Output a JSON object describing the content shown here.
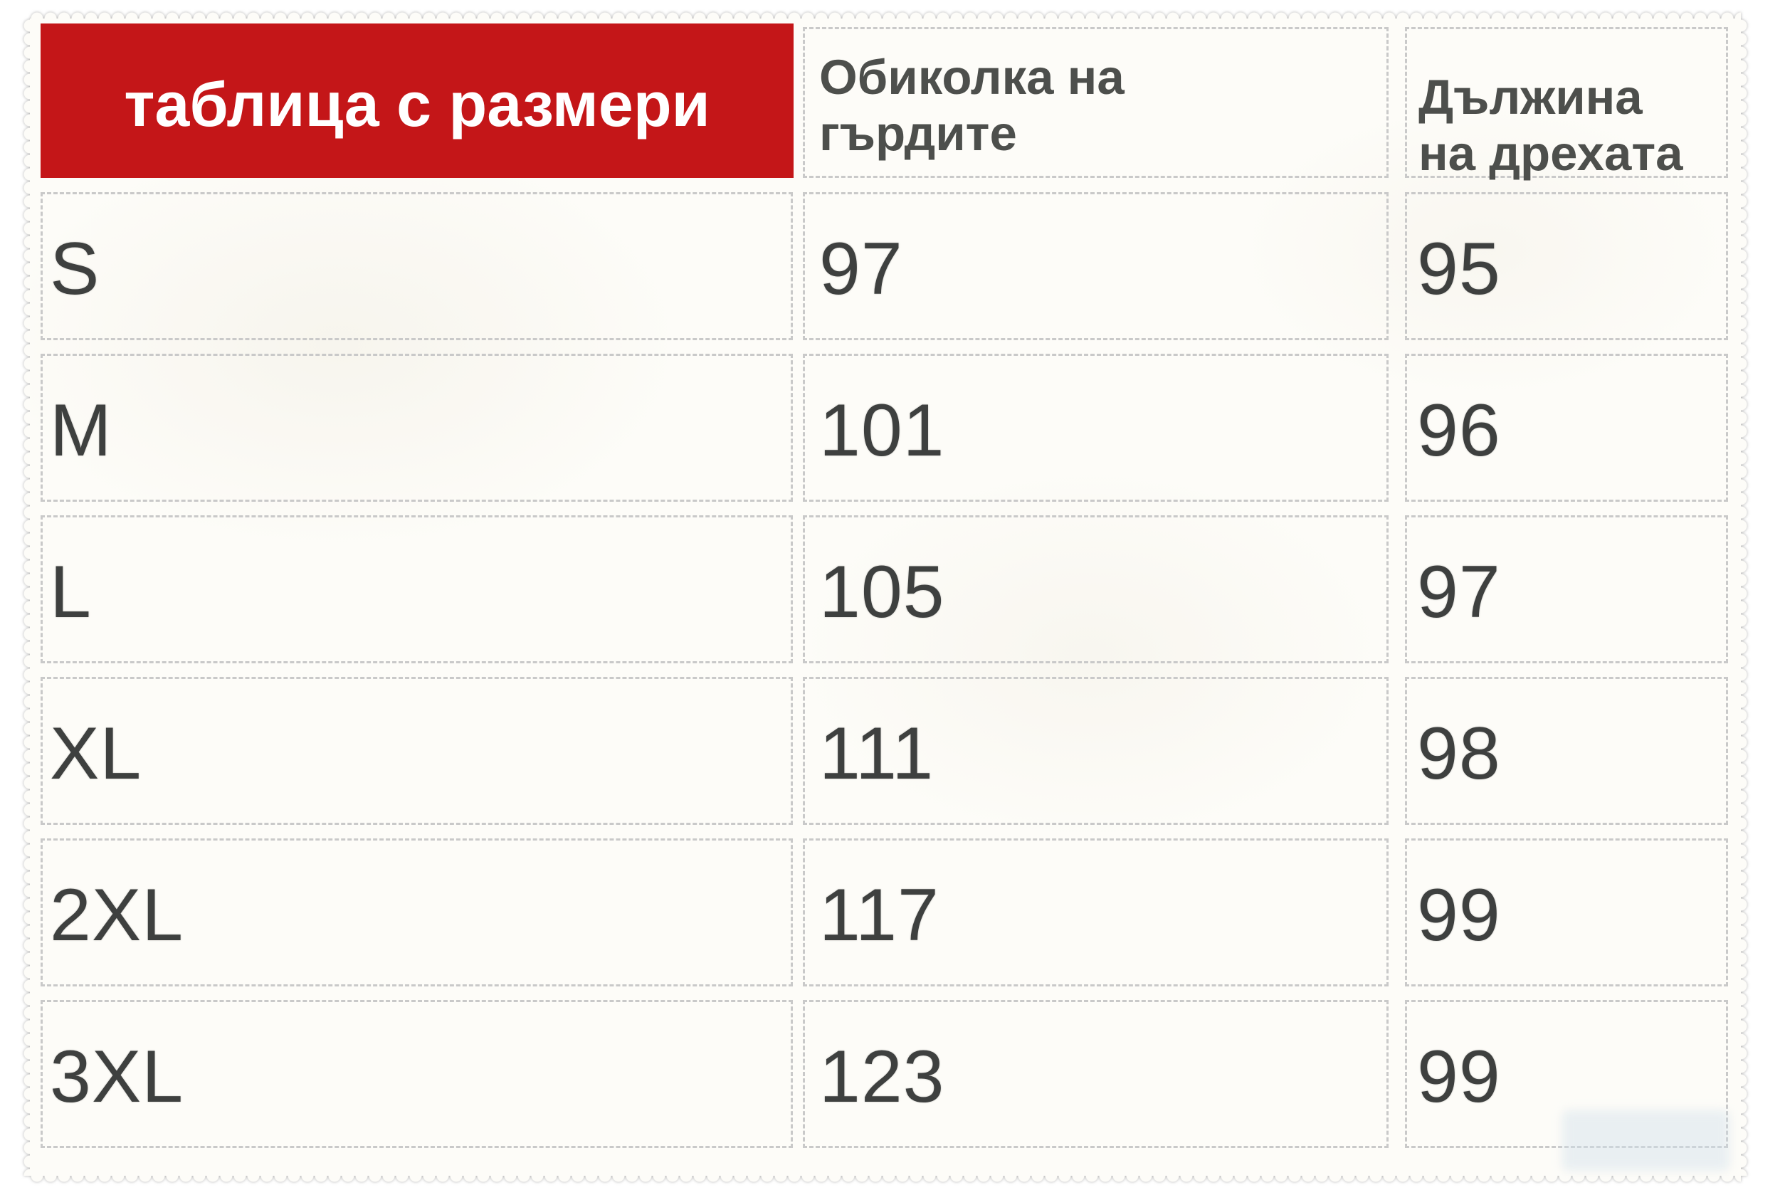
{
  "header": {
    "title": "таблица с размери",
    "chest_l1": "Обиколка на",
    "chest_l2": "гърдите",
    "length_l1": "Дължина",
    "length_l2": "на дрехата"
  },
  "rows": [
    {
      "size": "S",
      "chest": "97",
      "length": "95"
    },
    {
      "size": "M",
      "chest": "101",
      "length": "96"
    },
    {
      "size": "L",
      "chest": "105",
      "length": "97"
    },
    {
      "size": "XL",
      "chest": "111",
      "length": "98"
    },
    {
      "size": "2XL",
      "chest": "117",
      "length": "99"
    },
    {
      "size": "3XL",
      "chest": "123",
      "length": "99"
    }
  ],
  "colors": {
    "accent_red": "#c41618",
    "header_text": "#4d4f4c",
    "data_text": "#3e403f",
    "sheet_background": "#fdfcf8",
    "cell_border": "#c9c9c9",
    "title_text": "#ffffff"
  },
  "chart_data": {
    "type": "table",
    "title": "таблица с размери",
    "columns": [
      "размер",
      "Обиколка на гърдите",
      "Дължина на дрехата"
    ],
    "rows": [
      [
        "S",
        97,
        95
      ],
      [
        "M",
        101,
        96
      ],
      [
        "L",
        105,
        97
      ],
      [
        "XL",
        111,
        98
      ],
      [
        "2XL",
        117,
        99
      ],
      [
        "3XL",
        123,
        99
      ]
    ],
    "units": "cm",
    "layout": "size chart; red title cell top-left; dashed bordered cells; off-white scalloped sheet"
  }
}
